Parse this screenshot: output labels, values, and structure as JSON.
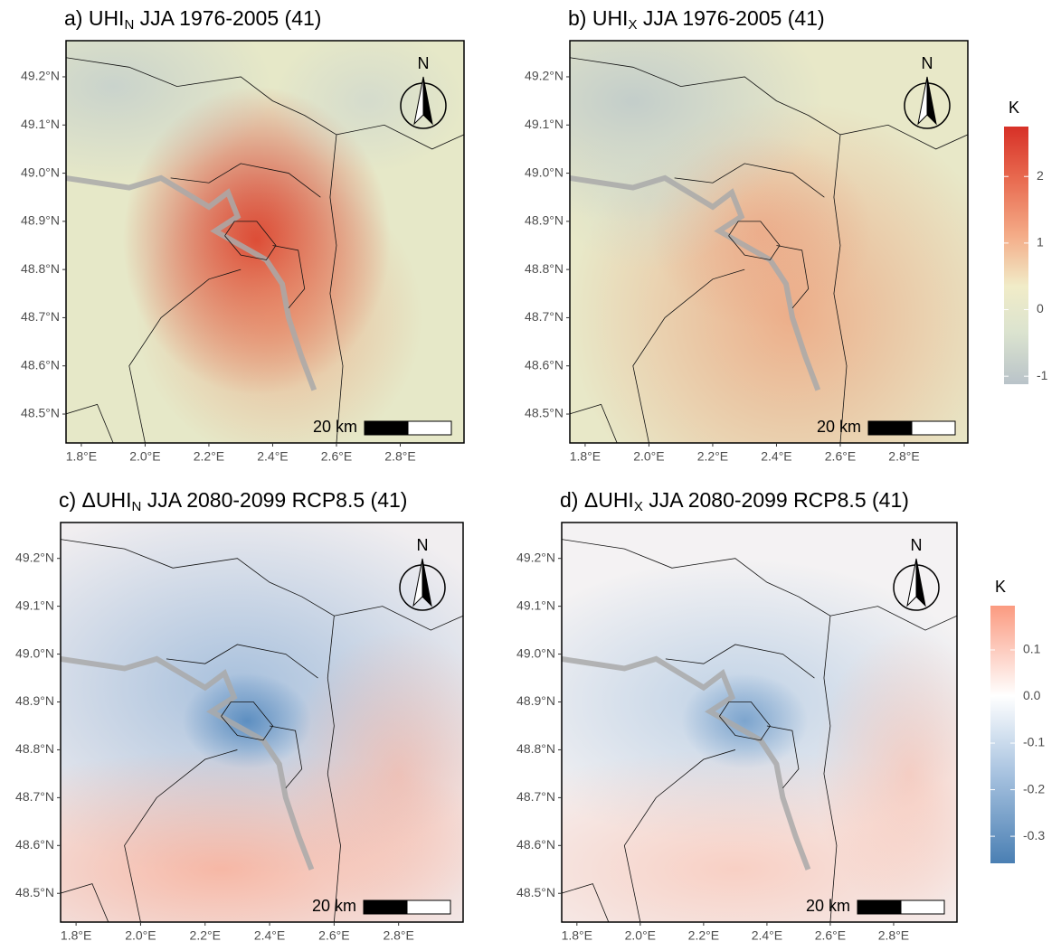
{
  "panels": [
    {
      "label": "a) UHI",
      "subscript": "N",
      "title_rest": " JJA 1976-2005 (41)"
    },
    {
      "label": "b) UHI",
      "subscript": "X",
      "title_rest": " JJA 1976-2005 (41)"
    },
    {
      "label": "c) ΔUHI",
      "subscript": "N",
      "title_rest": " JJA 2080-2099 RCP8.5 (41)"
    },
    {
      "label": "d) ΔUHI",
      "subscript": "X",
      "title_rest": " JJA 2080-2099 RCP8.5 (41)"
    }
  ],
  "x_axis": {
    "xlim": [
      1.752,
      3.0
    ],
    "xticks": [
      {
        "value": 1.8,
        "label": "1.8°E"
      },
      {
        "value": 2.0,
        "label": "2.0°E"
      },
      {
        "value": 2.2,
        "label": "2.2°E"
      },
      {
        "value": 2.4,
        "label": "2.4°E"
      },
      {
        "value": 2.6,
        "label": "2.6°E"
      },
      {
        "value": 2.8,
        "label": "2.8°E"
      }
    ]
  },
  "y_axis": {
    "ylim": [
      48.44,
      49.275
    ],
    "yticks": [
      {
        "value": 48.5,
        "label": "48.5°N"
      },
      {
        "value": 48.6,
        "label": "48.6°N"
      },
      {
        "value": 48.7,
        "label": "48.7°N"
      },
      {
        "value": 48.8,
        "label": "48.8°N"
      },
      {
        "value": 48.9,
        "label": "48.9°N"
      },
      {
        "value": 49.0,
        "label": "49.0°N"
      },
      {
        "value": 49.1,
        "label": "49.1°N"
      },
      {
        "value": 49.2,
        "label": "49.2°N"
      }
    ]
  },
  "scale_bar": "20 km",
  "north": "N",
  "legends": [
    {
      "title": "K",
      "lim": [
        -1.12,
        2.75
      ],
      "ticks": [
        2,
        1,
        0,
        -1
      ]
    },
    {
      "title": "K",
      "lim": [
        -0.358,
        0.195
      ],
      "ticks": [
        0.1,
        {
          "value": 0,
          "label": "0.0"
        },
        -0.1,
        -0.2,
        -0.3
      ]
    }
  ]
}
